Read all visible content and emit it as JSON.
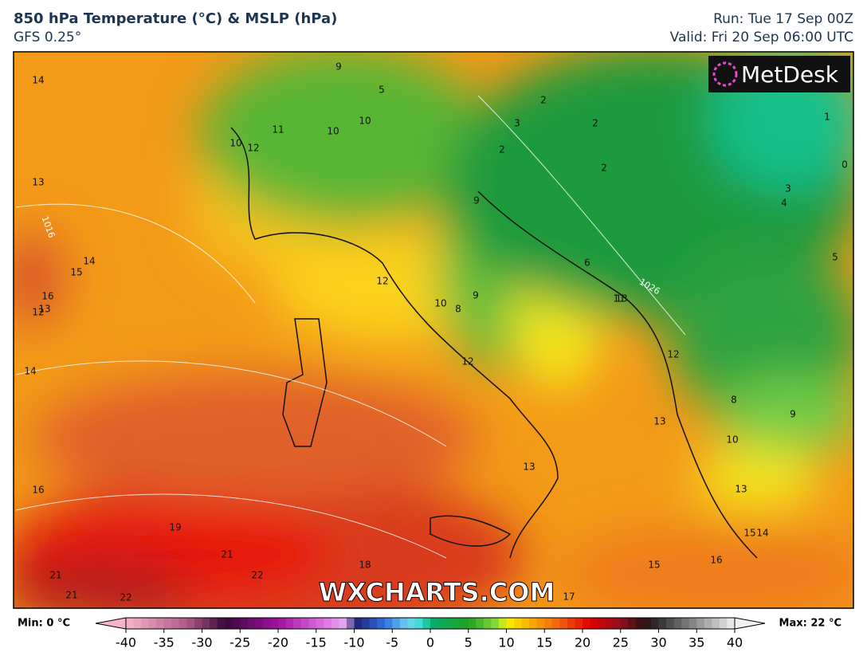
{
  "header": {
    "title": "850 hPa Temperature (°C) & MSLP (hPa)",
    "model": "GFS 0.25°",
    "run": "Run: Tue 17 Sep 00Z",
    "valid": "Valid: Fri 20 Sep 06:00 UTC"
  },
  "logo": "MetDesk",
  "watermark": "WXCHARTS.COM",
  "contour_labels": [
    "14",
    "13",
    "15",
    "14",
    "16",
    "13",
    "12",
    "14",
    "16",
    "19",
    "21",
    "21",
    "21",
    "22",
    "22",
    "18",
    "12",
    "12",
    "10",
    "8",
    "9",
    "13",
    "13",
    "15",
    "16",
    "17",
    "15",
    "14",
    "13",
    "10",
    "9",
    "8",
    "12",
    "13",
    "11",
    "6",
    "2",
    "2",
    "3",
    "2",
    "2",
    "3",
    "4",
    "5",
    "1",
    "0",
    "5",
    "9",
    "10",
    "11",
    "10",
    "10",
    "12",
    "9"
  ],
  "isobar_labels": [
    "1016",
    "1026"
  ],
  "legend": {
    "min_label": "Min: 0 °C",
    "max_label": "Max: 22 °C",
    "ticks": [
      -40,
      -35,
      -30,
      -25,
      -20,
      -15,
      -10,
      -5,
      0,
      5,
      10,
      15,
      20,
      25,
      30,
      35,
      40
    ]
  }
}
